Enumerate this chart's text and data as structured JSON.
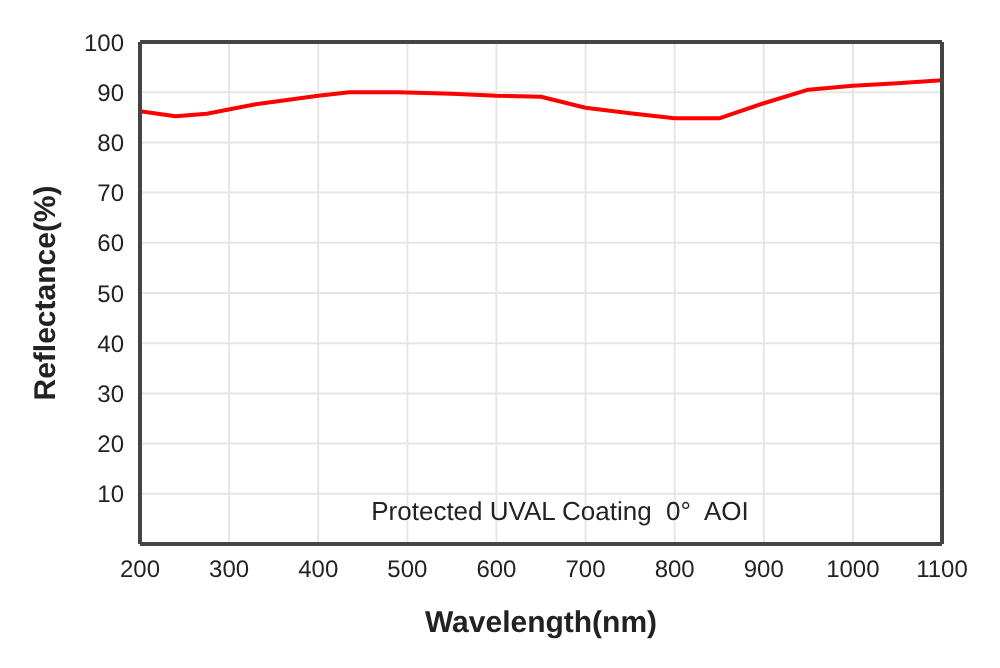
{
  "chart_data": {
    "type": "line",
    "xlabel": "Wavelength(nm)",
    "ylabel": "Reflectance(%)",
    "x": [
      200,
      240,
      275,
      330,
      400,
      435,
      490,
      550,
      600,
      650,
      700,
      750,
      800,
      850,
      900,
      950,
      1000,
      1050,
      1100
    ],
    "series": [
      {
        "color": "#ff0000",
        "values": [
          86.2,
          85.2,
          85.7,
          87.6,
          89.3,
          90,
          90,
          89.7,
          89.3,
          89.1,
          86.9,
          85.8,
          84.8,
          84.8,
          87.8,
          90.5,
          91.3,
          91.8,
          92.4
        ]
      }
    ],
    "xlim": [
      200,
      1100
    ],
    "xticks": [
      200,
      300,
      400,
      500,
      600,
      700,
      800,
      900,
      1000,
      1100
    ],
    "ylim": [
      0,
      100
    ],
    "yticks": [
      10,
      20,
      30,
      40,
      50,
      60,
      70,
      80,
      90,
      100
    ],
    "grid": true,
    "marker": "none",
    "line_style": "solid",
    "annotations": [
      "Protected UVAL Coating  0°  AOI"
    ]
  }
}
